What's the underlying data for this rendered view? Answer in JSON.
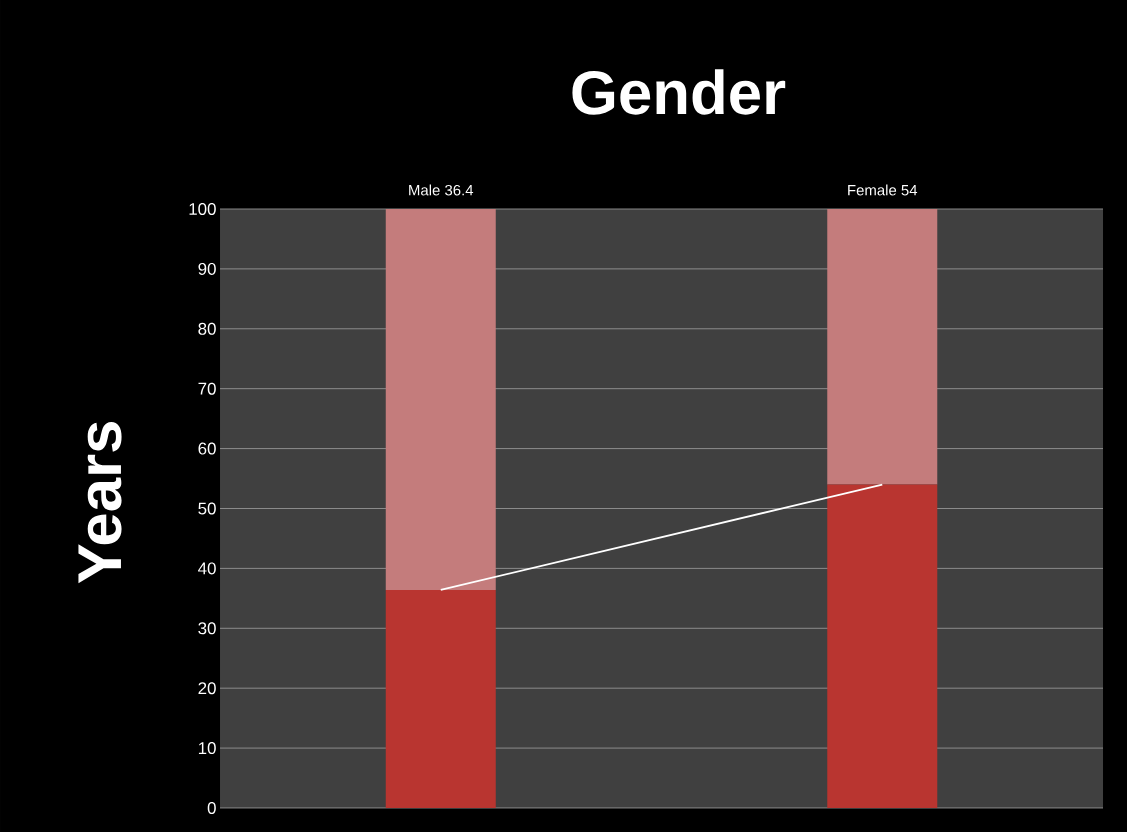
{
  "chart_data": {
    "type": "bar",
    "title": "Gender",
    "ylabel": "Years",
    "categories": [
      "Male 36.4",
      "Female 54"
    ],
    "stacked": true,
    "series": [
      {
        "color": "#b93530",
        "values": [
          36.4,
          54
        ]
      },
      {
        "color": "#c47c7c",
        "values": [
          63.6,
          46
        ]
      },
      {
        "type": "line",
        "color": "#ffffff",
        "values": [
          36.4,
          54
        ]
      }
    ],
    "ylim": [
      0,
      100
    ],
    "yticks": [
      0,
      10,
      20,
      30,
      40,
      50,
      60,
      70,
      80,
      90,
      100
    ],
    "grid": "y"
  }
}
